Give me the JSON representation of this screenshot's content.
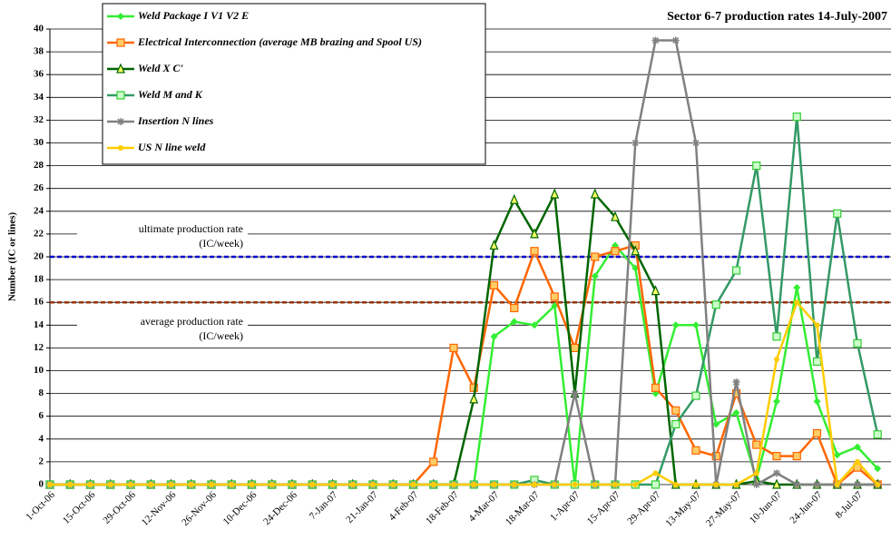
{
  "chart_data": {
    "type": "line",
    "title": "Sector 6-7 production rates 14-July-2007",
    "ylabel": "Number (IC or lines)",
    "categories": [
      "1-Oct-06",
      null,
      "15-Oct-06",
      null,
      "29-Oct-06",
      null,
      "12-Nov-06",
      null,
      "26-Nov-06",
      null,
      "10-Dec-06",
      null,
      "24-Dec-06",
      null,
      "7-Jan-07",
      null,
      "21-Jan-07",
      null,
      "4-Feb-07",
      null,
      "18-Feb-07",
      null,
      "4-Mar-07",
      null,
      "18-Mar-07",
      null,
      "1-Apr-07",
      null,
      "15-Apr-07",
      null,
      "29-Apr-07",
      null,
      "13-May-07",
      null,
      "27-May-07",
      null,
      "10-Jun-07",
      null,
      "24-Jun-07",
      null,
      "8-Jul-07",
      null
    ],
    "ylim": [
      0,
      40
    ],
    "yticks": [
      0,
      2,
      4,
      6,
      8,
      10,
      12,
      14,
      16,
      18,
      20,
      22,
      24,
      26,
      28,
      30,
      32,
      34,
      36,
      38,
      40
    ],
    "grid": true,
    "legend": "top-left",
    "series": [
      {
        "name": "Weld Package I V1 V2  E",
        "color": "#33ee33",
        "marker": "diamond",
        "values": [
          0,
          0,
          0,
          0,
          0,
          0,
          0,
          0,
          0,
          0,
          0,
          0,
          0,
          0,
          0,
          0,
          0,
          0,
          0,
          0,
          0,
          0,
          13,
          14.3,
          14,
          15.7,
          0,
          18.3,
          21,
          19,
          8,
          14,
          14,
          5.3,
          6.3,
          0.5,
          7.3,
          17.3,
          7.3,
          2.6,
          3.3,
          1.4
        ]
      },
      {
        "name": "Electrical Interconnection (average MB brazing and Spool US)",
        "color": "#ff6600",
        "marker": "square",
        "values": [
          0,
          0,
          0,
          0,
          0,
          0,
          0,
          0,
          0,
          0,
          0,
          0,
          0,
          0,
          0,
          0,
          0,
          0,
          0,
          2,
          12,
          8.5,
          17.5,
          15.5,
          20.5,
          16.5,
          12,
          20,
          20.5,
          21,
          8.5,
          6.5,
          3,
          2.5,
          8,
          3.5,
          2.5,
          2.5,
          4.5,
          0,
          1.5,
          0
        ]
      },
      {
        "name": "Weld  X C'",
        "color": "#006600",
        "marker": "triangle",
        "values": [
          0,
          0,
          0,
          0,
          0,
          0,
          0,
          0,
          0,
          0,
          0,
          0,
          0,
          0,
          0,
          0,
          0,
          0,
          0,
          0,
          0,
          7.5,
          21,
          25,
          22,
          25.5,
          8,
          25.5,
          23.5,
          20.5,
          17,
          0,
          0,
          0,
          0,
          0.3,
          0,
          0,
          0,
          0,
          0,
          0
        ]
      },
      {
        "name": "Weld M and K",
        "color": "#339966",
        "marker": "open-square",
        "values": [
          0,
          0,
          0,
          0,
          0,
          0,
          0,
          0,
          0,
          0,
          0,
          0,
          0,
          0,
          0,
          0,
          0,
          0,
          0,
          0,
          0,
          0,
          0,
          0,
          0.4,
          0,
          0,
          0,
          0,
          0,
          0,
          5.3,
          7.8,
          15.8,
          18.8,
          28,
          13,
          32.3,
          10.8,
          23.8,
          12.4,
          4.4
        ]
      },
      {
        "name": "Insertion N lines",
        "color": "#808080",
        "marker": "star",
        "values": [
          0,
          0,
          0,
          0,
          0,
          0,
          0,
          0,
          0,
          0,
          0,
          0,
          0,
          0,
          0,
          0,
          0,
          0,
          0,
          0,
          0,
          0,
          0,
          0,
          0,
          0,
          8,
          0,
          0,
          30,
          39,
          39,
          30,
          0,
          9,
          0,
          1,
          0,
          0,
          0,
          0,
          0
        ]
      },
      {
        "name": "US N line weld",
        "color": "#ffcc00",
        "marker": "circle",
        "values": [
          0,
          0,
          0,
          0,
          0,
          0,
          0,
          0,
          0,
          0,
          0,
          0,
          0,
          0,
          0,
          0,
          0,
          0,
          0,
          0,
          0,
          0,
          0,
          0,
          0,
          0,
          0,
          0,
          0,
          0,
          1,
          0,
          0,
          0,
          0,
          1,
          11,
          16,
          14,
          0,
          2,
          0
        ]
      }
    ],
    "reference_lines": [
      {
        "value": 20,
        "color": "#0000cc",
        "label": [
          "ultimate production rate",
          "(IC/week)"
        ],
        "label_side": "above"
      },
      {
        "value": 16,
        "color": "#993300",
        "label": [
          "average production rate",
          "(IC/week)"
        ],
        "label_side": "below"
      }
    ]
  }
}
